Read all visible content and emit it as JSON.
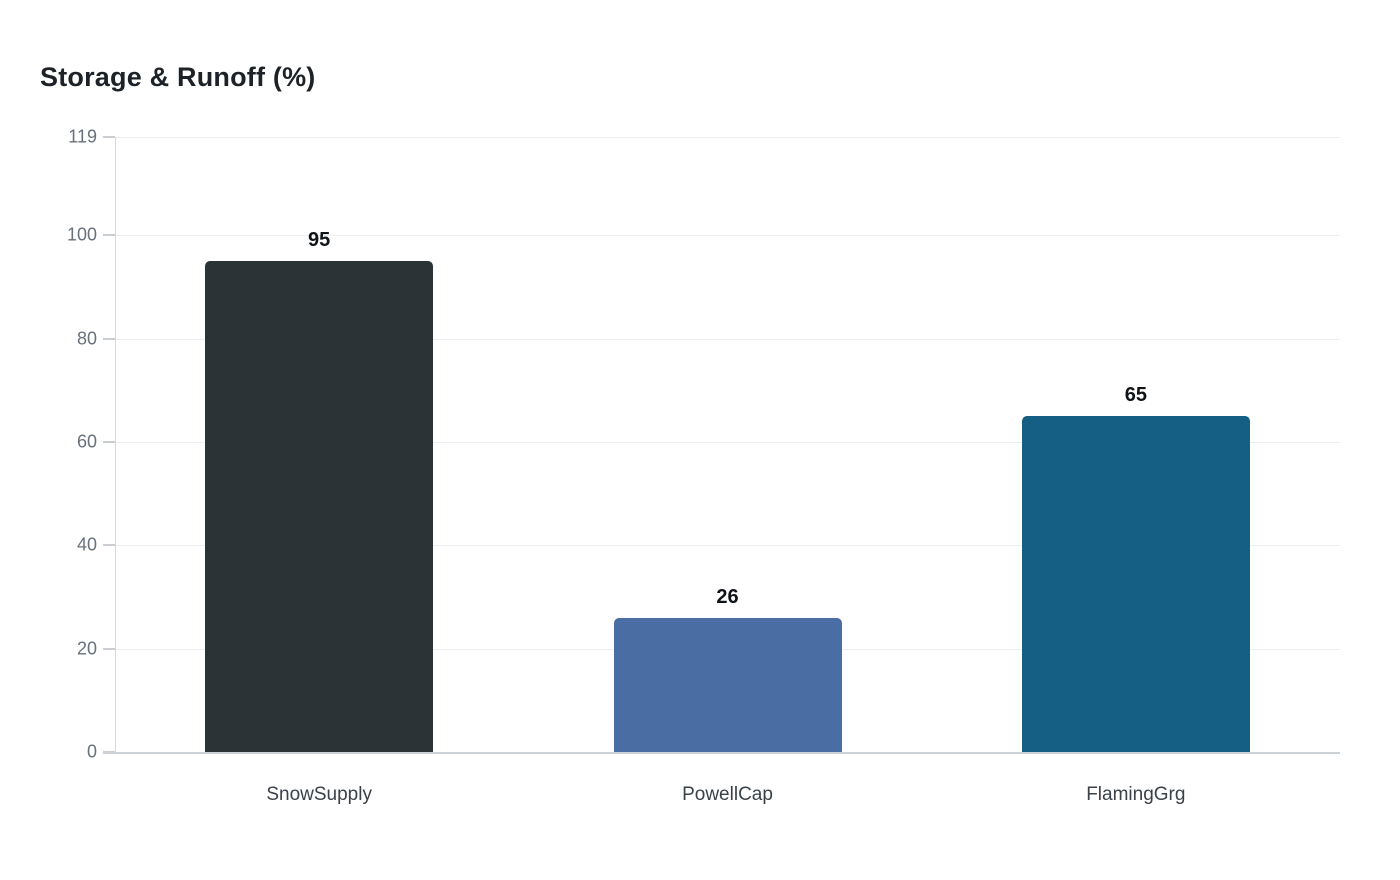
{
  "chart_data": {
    "type": "bar",
    "title": "Storage & Runoff (%)",
    "categories": [
      "SnowSupply",
      "PowellCap",
      "FlamingGrg"
    ],
    "values": [
      95,
      26,
      65
    ],
    "value_labels": [
      "95",
      "26",
      "65"
    ],
    "bar_colors": [
      "#2b3336",
      "#4a6da3",
      "#165f84"
    ],
    "y_ticks": [
      0,
      20,
      40,
      60,
      80,
      100,
      119
    ],
    "ylim": [
      0,
      119
    ],
    "xlabel": "",
    "ylabel": "",
    "grid": true,
    "legend": false,
    "value_labels_shown": true
  },
  "colors": {
    "background": "#ffffff",
    "gridline": "#eceef0",
    "tick_mark": "#c9ced3",
    "y_axis_line": "#d7dbde",
    "x_axis_line": "#ccd1d6",
    "tick_label": "#68717b",
    "category_label": "#3a4148",
    "value_label": "#111417",
    "title": "#1d2228"
  }
}
